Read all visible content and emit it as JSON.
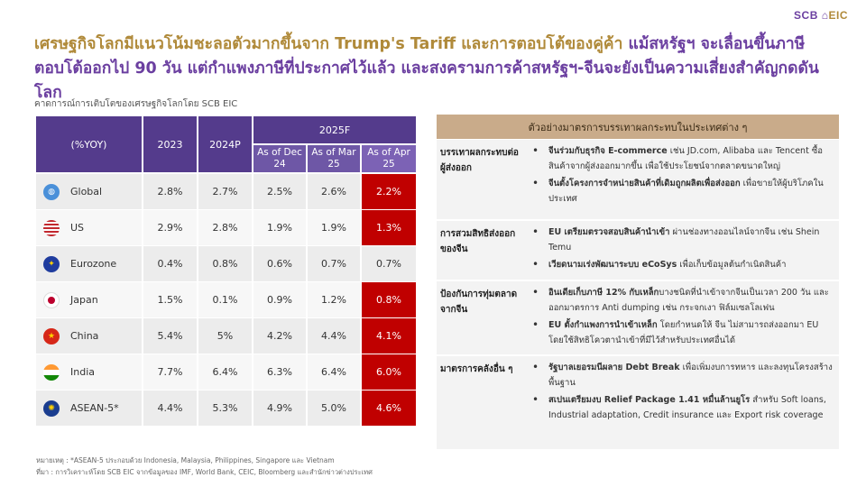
{
  "logo": {
    "main": "SCB",
    "sub": "EIC"
  },
  "headline": {
    "part1": "เศรษฐกิจโลกมีแนวโน้มชะลอตัวมากขึ้นจาก Trump's Tariff และการตอบโต้ของคู่ค้า",
    "part2": " แม้สหรัฐฯ จะเลื่อนขึ้นภาษีตอบโต้ออกไป 90 วัน แต่กำแพงภาษีที่ประกาศไว้แล้ว และสงครามการค้าสหรัฐฯ-จีนจะยังเป็นความเสี่ยงสำคัญกดดันโลก"
  },
  "subtitle": "คาดการณ์การเติบโตของเศรษฐกิจโลกโดย SCB EIC",
  "table": {
    "unit_header": "(%YOY)",
    "col_2023": "2023",
    "col_2024": "2024P",
    "col_2025": "2025F",
    "sub_dec": "As of Dec 24",
    "sub_mar": "As of Mar 25",
    "sub_apr": "As of Apr 25",
    "rows": [
      {
        "name": "Global",
        "icon": "globe-icon",
        "v2023": "2.8%",
        "v2024": "2.7%",
        "dec": "2.5%",
        "mar": "2.6%",
        "apr": "2.2%",
        "apr_highlight": true
      },
      {
        "name": "US",
        "icon": "us-flag-icon",
        "v2023": "2.9%",
        "v2024": "2.8%",
        "dec": "1.9%",
        "mar": "1.9%",
        "apr": "1.3%",
        "apr_highlight": true
      },
      {
        "name": "Eurozone",
        "icon": "eu-flag-icon",
        "v2023": "0.4%",
        "v2024": "0.8%",
        "dec": "0.6%",
        "mar": "0.7%",
        "apr": "0.7%",
        "apr_highlight": false
      },
      {
        "name": "Japan",
        "icon": "japan-flag-icon",
        "v2023": "1.5%",
        "v2024": "0.1%",
        "dec": "0.9%",
        "mar": "1.2%",
        "apr": "0.8%",
        "apr_highlight": true
      },
      {
        "name": "China",
        "icon": "china-flag-icon",
        "v2023": "5.4%",
        "v2024": "5%",
        "dec": "4.2%",
        "mar": "4.4%",
        "apr": "4.1%",
        "apr_highlight": true
      },
      {
        "name": "India",
        "icon": "india-flag-icon",
        "v2023": "7.7%",
        "v2024": "6.4%",
        "dec": "6.3%",
        "mar": "6.4%",
        "apr": "6.0%",
        "apr_highlight": true
      },
      {
        "name": "ASEAN-5*",
        "icon": "asean-flag-icon",
        "v2023": "4.4%",
        "v2024": "5.3%",
        "dec": "4.9%",
        "mar": "5.0%",
        "apr": "4.6%",
        "apr_highlight": true
      }
    ]
  },
  "notes": {
    "note1": "หมายเหตุ : *ASEAN-5 ประกอบด้วย Indonesia, Malaysia, Philippines, Singapore และ Vietnam",
    "note2": "ที่มา : การวิเคราะห์โดย SCB EIC จากข้อมูลของ IMF, World Bank, CEIC, Bloomberg และสำนักข่าวต่างประเทศ"
  },
  "panel": {
    "title": "ตัวอย่างมาตรการบรรเทาผลกระทบในประเทศต่าง ๆ",
    "sections": [
      {
        "label": "บรรเทาผลกระทบต่อผู้ส่งออก",
        "items": [
          {
            "bold": "จีนร่วมกับธุรกิจ E-commerce",
            "text": " เช่น JD.com, Alibaba และ Tencent ซื้อสินค้าจากผู้ส่งออกมากขึ้น เพื่อใช้ประโยชน์จากตลาดขนาดใหญ่"
          },
          {
            "bold": "จีนตั้งโครงการจำหน่ายสินค้าที่เดิมถูกผลิตเพื่อส่งออก",
            "text": " เพื่อขายให้ผู้บริโภคในประเทศ"
          }
        ]
      },
      {
        "label": "การสวมสิทธิส่งออกของจีน",
        "items": [
          {
            "bold": "EU เตรียมตรวจสอบสินค้านำเข้า",
            "text": " ผ่านช่องทางออนไลน์จากจีน เช่น Shein Temu"
          },
          {
            "bold": "เวียดนามเร่งพัฒนาระบบ eCoSys",
            "text": " เพื่อเก็บข้อมูลต้นกำเนิดสินค้า"
          }
        ]
      },
      {
        "label": "ป้องกันการทุ่มตลาดจากจีน",
        "items": [
          {
            "bold": "อินเดียเก็บภาษี 12% กับเหล็ก",
            "text": "บางชนิดที่นำเข้าจากจีนเป็นเวลา 200 วัน และออกมาตรการ Anti dumping เช่น กระจกเงา ฟิล์มเซลโลเฟน"
          },
          {
            "bold": "EU ตั้งกำแพงการนำเข้าเหล็ก",
            "text": " โดยกำหนดให้ จีน ไม่สามารถส่งออกมา EU โดยใช้สิทธิโควตานำเข้าที่มีไว้สำหรับประเทศอื่นได้"
          }
        ]
      },
      {
        "label": "มาตรการคลังอื่น ๆ",
        "items": [
          {
            "bold": "รัฐบาลเยอรมนีผลาย Debt Break",
            "text": " เพื่อเพิ่มงบการทหาร และลงทุนโครงสร้างพื้นฐาน"
          },
          {
            "bold": "สเปนเตรียมงบ Relief Package 1.41 หมื่นล้านยูโร",
            "text": " สำหรับ Soft loans, Industrial adaptation, Credit insurance และ Export risk coverage"
          }
        ]
      }
    ]
  },
  "colors": {
    "purple": "#543b8c",
    "gold": "#b08a3a",
    "highlight_red": "#c00000",
    "panel_header": "#c9ab8a"
  }
}
